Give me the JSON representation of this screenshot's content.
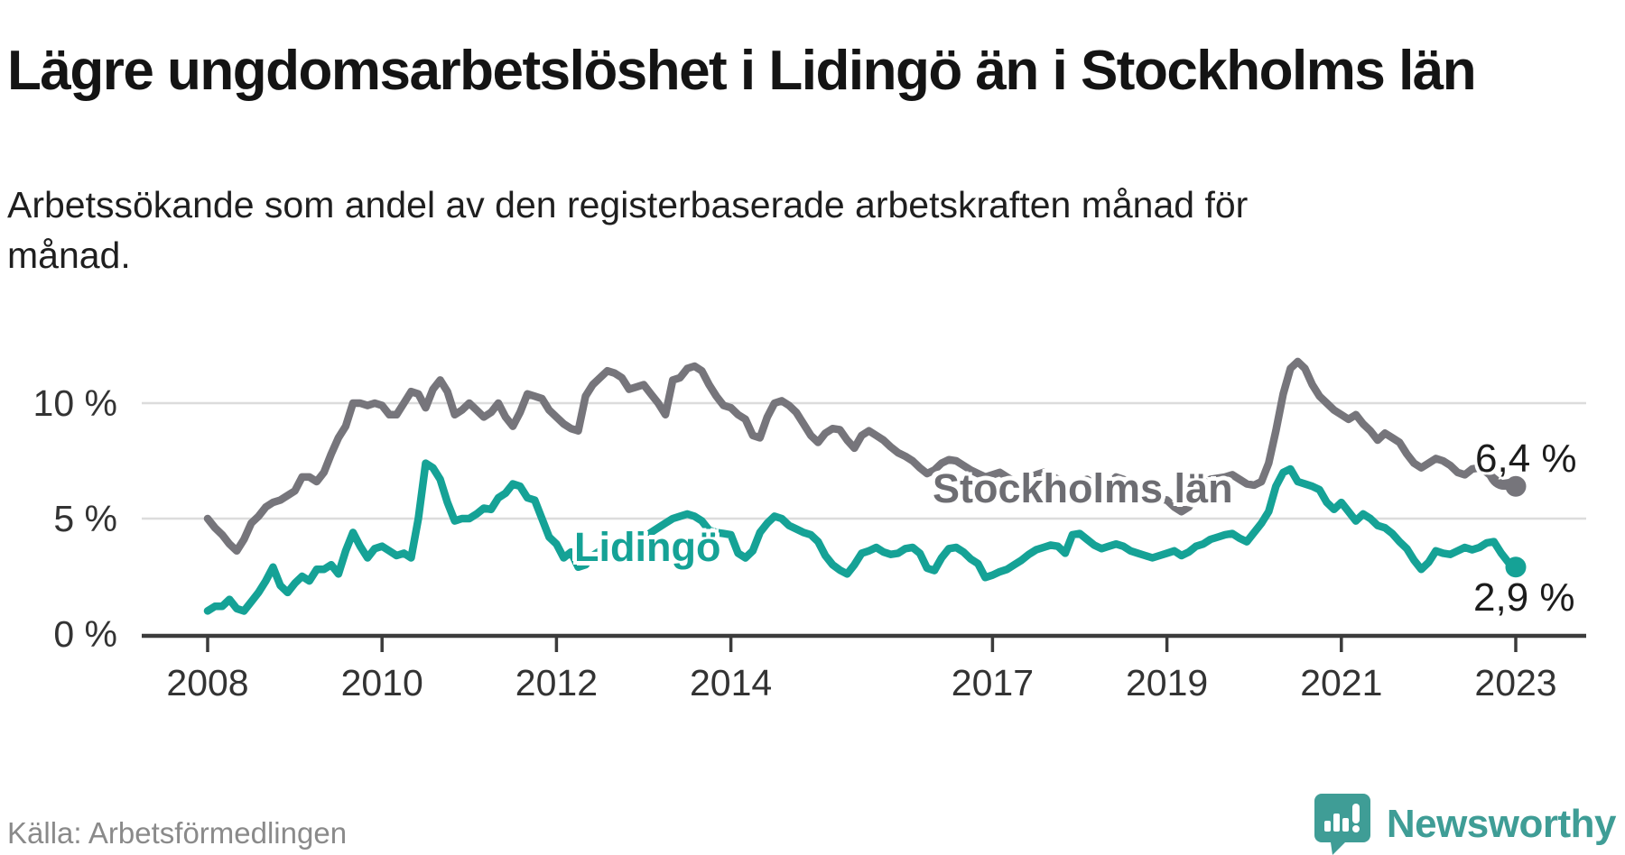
{
  "header": {
    "title": "Lägre ungdomsarbetslöshet i Lidingö än i Stockholms län",
    "subtitle": "Arbetssökande som andel av den registerbaserade arbetskraften månad för månad."
  },
  "source_line": "Källa: Arbetsförmedlingen",
  "branding": {
    "name": "Newsworthy",
    "logo_icon": "newsworthy-speech-bubble-bar-chart-icon",
    "brand_color": "#3f9d96"
  },
  "colors": {
    "stockholm_line": "#76757b",
    "lidingo_line": "#15a296",
    "gridline": "#dcdcdc",
    "axis": "#3b3b3b",
    "axis_text": "#333333"
  },
  "chart_data": {
    "type": "line",
    "title": "Lägre ungdomsarbetslöshet i Lidingö än i Stockholms län",
    "xlabel": "",
    "ylabel": "",
    "x_start_year": 2008,
    "x_step_months": 1,
    "x_end": "2023-01",
    "ylim": [
      0,
      12.5
    ],
    "grid": "horizontal",
    "legend_position": "inline-labels-on-lines",
    "x_ticks": [
      2008,
      2010,
      2012,
      2014,
      2017,
      2019,
      2021,
      2023
    ],
    "y_ticks": [
      {
        "value": 0,
        "label": "0 %"
      },
      {
        "value": 5,
        "label": "5 %"
      },
      {
        "value": 10,
        "label": "10 %"
      }
    ],
    "series": [
      {
        "name": "Stockholms län",
        "color": "#76757b",
        "end_label": "6,4 %",
        "end_value": 6.4,
        "values": [
          5.0,
          4.6,
          4.3,
          3.9,
          3.6,
          4.1,
          4.8,
          5.1,
          5.5,
          5.7,
          5.8,
          6.0,
          6.2,
          6.8,
          6.8,
          6.6,
          7.0,
          7.8,
          8.5,
          9.0,
          10.0,
          10.0,
          9.9,
          10.0,
          9.9,
          9.5,
          9.5,
          10.0,
          10.5,
          10.4,
          9.8,
          10.6,
          11.0,
          10.5,
          9.5,
          9.7,
          10.0,
          9.7,
          9.4,
          9.6,
          10.0,
          9.4,
          9.0,
          9.6,
          10.4,
          10.3,
          10.2,
          9.7,
          9.4,
          9.1,
          8.9,
          8.8,
          10.3,
          10.8,
          11.1,
          11.4,
          11.3,
          11.1,
          10.6,
          10.7,
          10.8,
          10.4,
          10.0,
          9.5,
          11.0,
          11.1,
          11.5,
          11.6,
          11.4,
          10.8,
          10.3,
          9.9,
          9.8,
          9.5,
          9.3,
          8.6,
          8.5,
          9.4,
          10.0,
          10.1,
          9.9,
          9.6,
          9.1,
          8.6,
          8.3,
          8.7,
          8.9,
          8.85,
          8.4,
          8.05,
          8.6,
          8.8,
          8.6,
          8.4,
          8.1,
          7.85,
          7.7,
          7.5,
          7.2,
          6.95,
          7.1,
          7.4,
          7.55,
          7.5,
          7.3,
          7.1,
          6.95,
          6.8,
          6.9,
          7.0,
          6.8,
          6.6,
          6.5,
          6.7,
          6.9,
          7.0,
          6.85,
          6.7,
          6.5,
          6.4,
          6.6,
          6.7,
          6.5,
          6.35,
          6.5,
          6.8,
          6.7,
          6.5,
          6.3,
          6.1,
          5.95,
          5.85,
          5.8,
          5.5,
          5.3,
          5.5,
          6.0,
          6.4,
          6.7,
          6.75,
          6.8,
          6.9,
          6.7,
          6.5,
          6.45,
          6.6,
          7.4,
          8.8,
          10.4,
          11.5,
          11.8,
          11.5,
          10.8,
          10.3,
          10.0,
          9.7,
          9.5,
          9.3,
          9.5,
          9.1,
          8.8,
          8.4,
          8.7,
          8.5,
          8.3,
          7.8,
          7.4,
          7.2,
          7.4,
          7.6,
          7.5,
          7.3,
          7.0,
          6.9,
          7.15,
          7.2,
          7.0,
          6.75,
          6.5,
          6.55,
          6.4
        ]
      },
      {
        "name": "Lidingö",
        "color": "#15a296",
        "end_label": "2,9 %",
        "end_value": 2.9,
        "values": [
          1.0,
          1.2,
          1.2,
          1.5,
          1.1,
          1.0,
          1.4,
          1.8,
          2.3,
          2.9,
          2.1,
          1.8,
          2.2,
          2.5,
          2.3,
          2.8,
          2.8,
          3.0,
          2.6,
          3.6,
          4.4,
          3.8,
          3.3,
          3.7,
          3.8,
          3.6,
          3.4,
          3.5,
          3.3,
          5.0,
          7.4,
          7.2,
          6.7,
          5.7,
          4.9,
          5.0,
          5.0,
          5.2,
          5.45,
          5.4,
          5.9,
          6.1,
          6.5,
          6.4,
          5.9,
          5.8,
          5.0,
          4.2,
          3.9,
          3.3,
          3.55,
          2.9,
          3.0,
          3.4,
          3.6,
          3.5,
          3.8,
          4.0,
          4.05,
          4.1,
          4.15,
          4.4,
          4.6,
          4.8,
          5.0,
          5.1,
          5.2,
          5.1,
          4.9,
          4.5,
          4.4,
          4.35,
          4.3,
          3.5,
          3.3,
          3.6,
          4.4,
          4.8,
          5.1,
          5.0,
          4.7,
          4.55,
          4.4,
          4.3,
          4.0,
          3.4,
          3.0,
          2.77,
          2.6,
          3.0,
          3.5,
          3.6,
          3.75,
          3.55,
          3.45,
          3.5,
          3.7,
          3.75,
          3.5,
          2.85,
          2.75,
          3.3,
          3.7,
          3.75,
          3.55,
          3.25,
          3.05,
          2.45,
          2.55,
          2.7,
          2.8,
          3.0,
          3.2,
          3.45,
          3.65,
          3.75,
          3.85,
          3.8,
          3.5,
          4.3,
          4.35,
          4.1,
          3.85,
          3.7,
          3.8,
          3.9,
          3.8,
          3.6,
          3.5,
          3.4,
          3.3,
          3.4,
          3.5,
          3.6,
          3.4,
          3.55,
          3.8,
          3.9,
          4.1,
          4.2,
          4.3,
          4.35,
          4.15,
          4.0,
          4.4,
          4.8,
          5.3,
          6.4,
          7.0,
          7.15,
          6.6,
          6.5,
          6.4,
          6.25,
          5.7,
          5.4,
          5.7,
          5.3,
          4.9,
          5.2,
          5.0,
          4.7,
          4.6,
          4.35,
          4.0,
          3.7,
          3.2,
          2.8,
          3.1,
          3.6,
          3.5,
          3.45,
          3.6,
          3.75,
          3.65,
          3.75,
          3.95,
          4.0,
          3.5,
          3.1,
          2.9
        ]
      }
    ]
  }
}
